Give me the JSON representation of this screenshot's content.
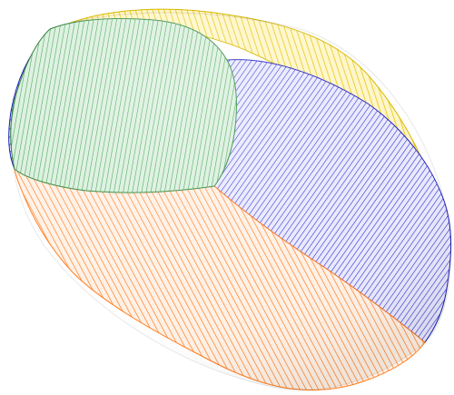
{
  "figure": {
    "description_free": true,
    "segments": [
      {
        "key": "yellow",
        "color": "#f2d21a",
        "line_color": "#e6c200"
      },
      {
        "key": "blue",
        "color": "#5a5ad8",
        "line_color": "#2a2acc"
      },
      {
        "key": "green",
        "color": "#6fbf7a",
        "line_color": "#3c9b4d"
      },
      {
        "key": "orange",
        "color": "#ffc08a",
        "line_color": "#ff7a1a"
      }
    ],
    "background": "#ffffff"
  }
}
